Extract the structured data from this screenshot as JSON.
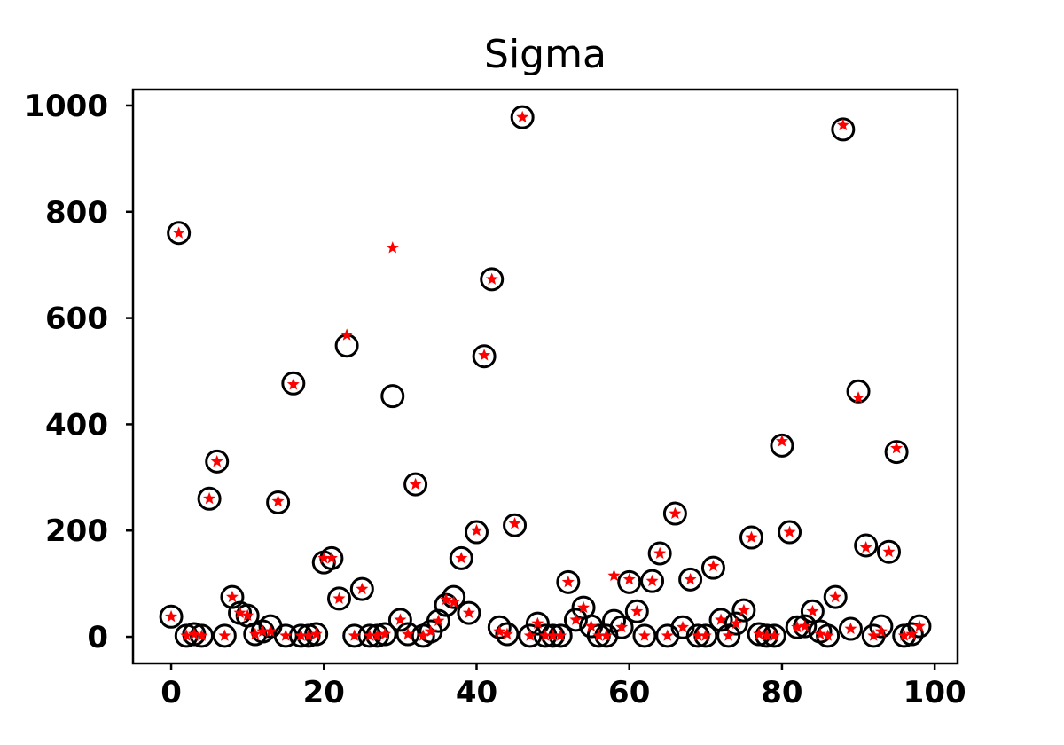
{
  "chart_data": {
    "type": "scatter",
    "title": "Sigma",
    "xlabel": "",
    "ylabel": "",
    "xlim": [
      -5,
      103
    ],
    "ylim": [
      -50,
      1030
    ],
    "xticks": [
      0,
      20,
      40,
      60,
      80,
      100
    ],
    "yticks": [
      0,
      200,
      400,
      600,
      800,
      1000
    ],
    "grid": false,
    "legend": "none",
    "colors": {
      "circles": "#000000",
      "stars": "#ff0000"
    },
    "series": [
      {
        "marker": "circle-open",
        "x": [
          0,
          1,
          2,
          3,
          4,
          5,
          6,
          7,
          8,
          9,
          10,
          11,
          12,
          13,
          14,
          15,
          16,
          17,
          18,
          19,
          20,
          21,
          22,
          23,
          24,
          25,
          26,
          27,
          28,
          29,
          30,
          31,
          32,
          33,
          34,
          35,
          36,
          37,
          38,
          39,
          40,
          41,
          42,
          43,
          44,
          45,
          46,
          47,
          48,
          49,
          50,
          51,
          52,
          53,
          54,
          55,
          56,
          57,
          58,
          59,
          60,
          61,
          62,
          63,
          64,
          65,
          66,
          67,
          68,
          69,
          70,
          71,
          72,
          73,
          74,
          75,
          76,
          77,
          78,
          79,
          80,
          81,
          82,
          83,
          84,
          85,
          86,
          87,
          88,
          89,
          90,
          91,
          92,
          93,
          94,
          95,
          96,
          97,
          98
        ],
        "y": [
          38,
          760,
          2,
          5,
          2,
          260,
          330,
          2,
          75,
          45,
          40,
          5,
          10,
          20,
          253,
          2,
          477,
          2,
          2,
          5,
          140,
          148,
          72,
          548,
          2,
          90,
          2,
          2,
          5,
          453,
          32,
          5,
          287,
          2,
          10,
          30,
          60,
          75,
          148,
          45,
          197,
          528,
          673,
          18,
          5,
          210,
          978,
          2,
          25,
          2,
          2,
          2,
          103,
          32,
          55,
          20,
          2,
          2,
          30,
          18,
          103,
          48,
          2,
          105,
          157,
          2,
          232,
          18,
          108,
          2,
          2,
          130,
          32,
          2,
          25,
          50,
          187,
          5,
          2,
          2,
          360,
          197,
          18,
          20,
          48,
          10,
          2,
          75,
          955,
          15,
          462,
          172,
          2,
          20,
          160,
          348,
          2,
          5,
          20
        ]
      },
      {
        "marker": "star",
        "x": [
          0,
          1,
          2,
          3,
          4,
          5,
          6,
          7,
          8,
          9,
          10,
          11,
          12,
          13,
          14,
          15,
          16,
          17,
          18,
          19,
          20,
          21,
          22,
          23,
          24,
          25,
          26,
          27,
          28,
          29,
          30,
          31,
          32,
          33,
          34,
          35,
          36,
          37,
          38,
          39,
          40,
          41,
          42,
          43,
          44,
          45,
          46,
          47,
          48,
          49,
          50,
          51,
          52,
          53,
          54,
          55,
          56,
          57,
          58,
          59,
          60,
          61,
          62,
          63,
          64,
          65,
          66,
          67,
          68,
          69,
          70,
          71,
          72,
          73,
          74,
          75,
          76,
          77,
          78,
          79,
          80,
          81,
          82,
          83,
          84,
          85,
          86,
          87,
          88,
          89,
          90,
          91,
          92,
          93,
          94,
          95,
          96,
          97,
          98
        ],
        "y": [
          38,
          760,
          2,
          5,
          2,
          260,
          330,
          2,
          75,
          45,
          40,
          5,
          10,
          10,
          255,
          2,
          475,
          2,
          2,
          5,
          148,
          148,
          72,
          568,
          2,
          90,
          2,
          2,
          5,
          732,
          32,
          5,
          287,
          2,
          10,
          30,
          70,
          65,
          148,
          45,
          200,
          530,
          673,
          10,
          5,
          213,
          978,
          2,
          25,
          2,
          2,
          2,
          103,
          32,
          55,
          20,
          2,
          2,
          115,
          18,
          108,
          48,
          2,
          105,
          157,
          2,
          232,
          18,
          108,
          2,
          2,
          133,
          32,
          2,
          25,
          50,
          187,
          5,
          2,
          2,
          368,
          197,
          18,
          20,
          48,
          5,
          2,
          75,
          963,
          15,
          450,
          168,
          2,
          10,
          160,
          355,
          2,
          5,
          20
        ]
      }
    ]
  }
}
